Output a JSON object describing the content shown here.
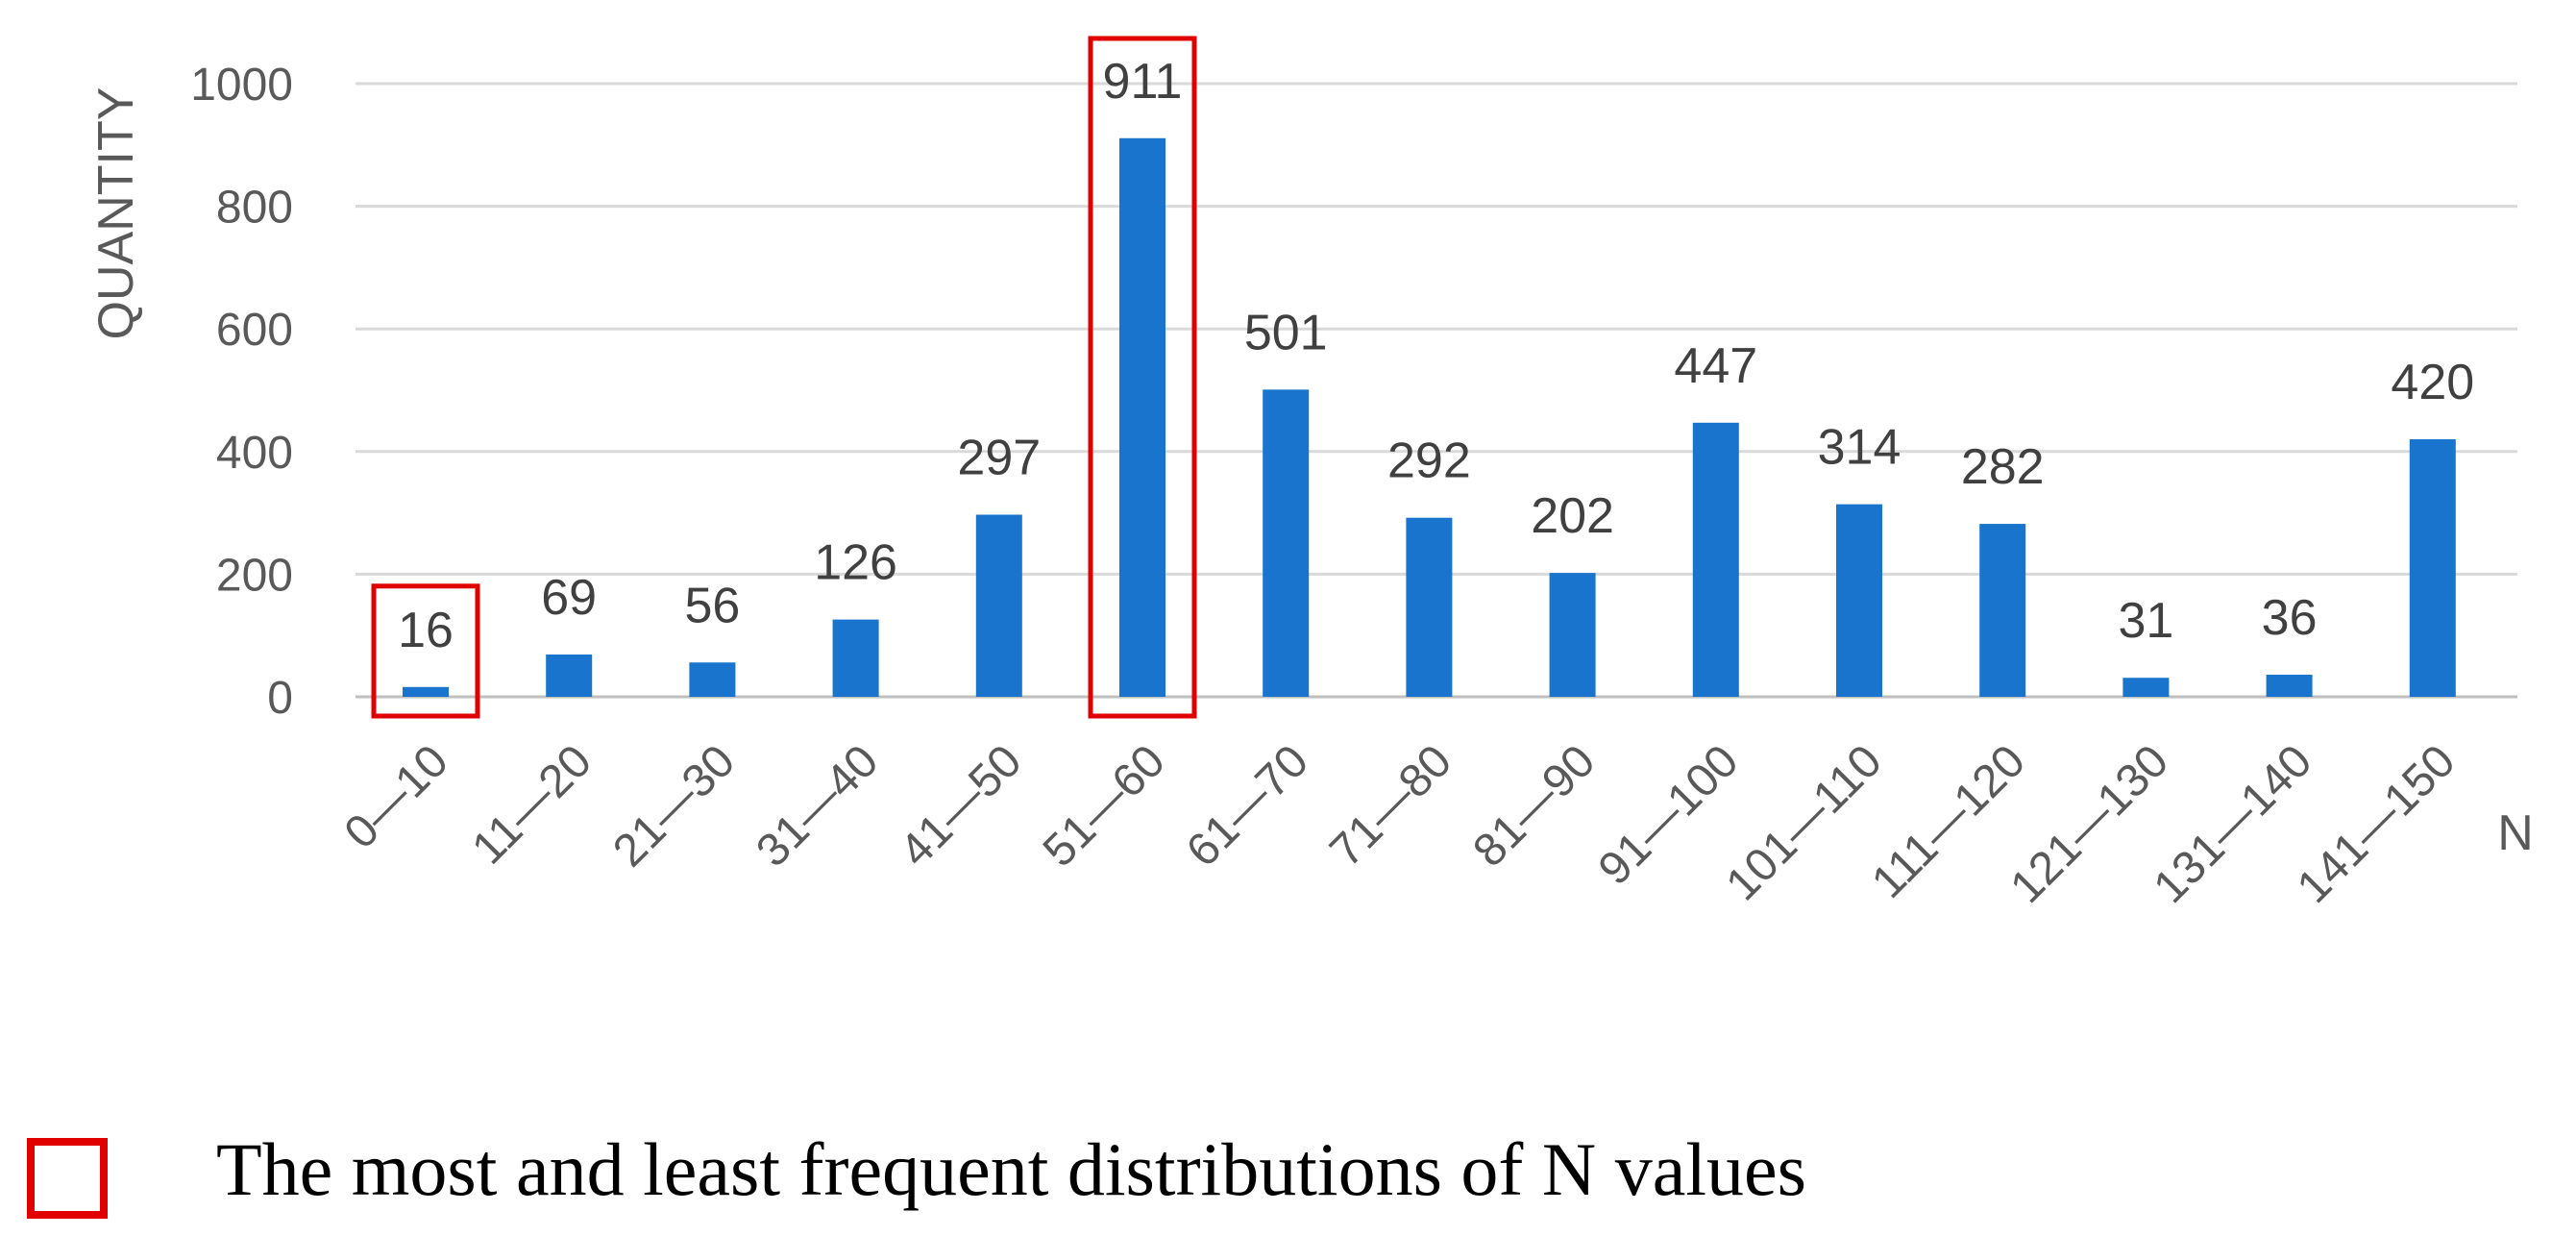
{
  "chart_data": {
    "type": "bar",
    "title": "",
    "xlabel": "N",
    "ylabel": "QUANTITY",
    "categories": [
      "0—10",
      "11—20",
      "21—30",
      "31—40",
      "41—50",
      "51—60",
      "61—70",
      "71—80",
      "81—90",
      "91—100",
      "101—110",
      "111—120",
      "121—130",
      "131—140",
      "141—150"
    ],
    "values": [
      16,
      69,
      56,
      126,
      297,
      911,
      501,
      292,
      202,
      447,
      314,
      282,
      31,
      36,
      420
    ],
    "data_labels": [
      "16",
      "69",
      "56",
      "126",
      "297",
      "911",
      "501",
      "292",
      "202",
      "447",
      "314",
      "282",
      "31",
      "36",
      "420"
    ],
    "y_ticks": [
      0,
      200,
      400,
      600,
      800,
      1000
    ],
    "y_tick_labels": [
      "0",
      "200",
      "400",
      "600",
      "800",
      "1000"
    ],
    "ylim": [
      0,
      1000
    ],
    "grid": true,
    "highlighted_categories": [
      "0—10",
      "51—60"
    ],
    "legend": [
      {
        "label": "The most and least frequent distributions of N values",
        "marker": "red-outline-square"
      }
    ],
    "colors": {
      "bar": "#1874CD",
      "highlight": "#E00000",
      "grid": "#D9D9D9"
    }
  }
}
